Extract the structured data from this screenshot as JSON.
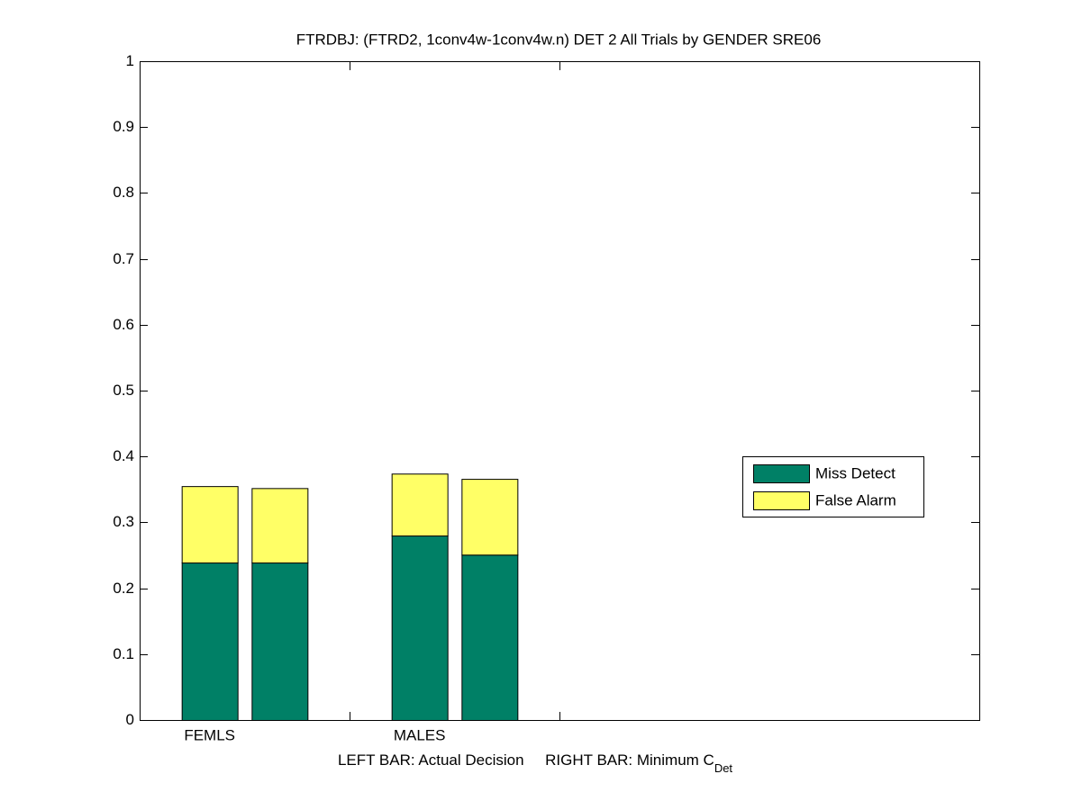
{
  "chart_data": {
    "type": "bar",
    "stacked": true,
    "title": "FTRDBJ: (FTRD2, 1conv4w-1conv4w.n) DET 2 All Trials by GENDER SRE06",
    "xlabel": "LEFT BAR: Actual Decision     RIGHT BAR: Minimum C",
    "xlabel_subscript": "Det",
    "categories": [
      "FEMLS",
      null,
      "MALES",
      null
    ],
    "series": [
      {
        "name": "Miss Detect",
        "color": "#008066",
        "values": [
          0.239,
          0.239,
          0.28,
          0.251
        ]
      },
      {
        "name": "False Alarm",
        "color": "#ffff66",
        "values": [
          0.116,
          0.113,
          0.094,
          0.115
        ]
      }
    ],
    "ylim": [
      0,
      1
    ],
    "yticks": [
      0,
      0.1,
      0.2,
      0.3,
      0.4,
      0.5,
      0.6,
      0.7,
      0.8,
      0.9,
      1
    ],
    "grid": false,
    "legend": "right"
  }
}
